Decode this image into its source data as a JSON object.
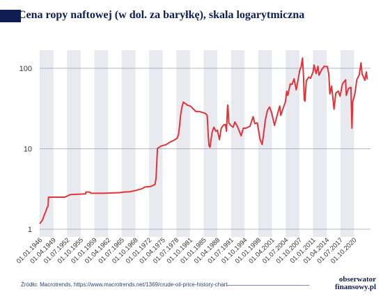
{
  "chart_data": {
    "type": "line",
    "title": "Cena ropy naftowej (w dol. za baryłkę), skala logarytmiczna",
    "xlabel": "",
    "ylabel": "",
    "yscale": "log",
    "ylim": [
      1,
      140
    ],
    "yticks": [
      {
        "value": 1,
        "label": "1"
      },
      {
        "value": 10,
        "label": "10"
      },
      {
        "value": 100,
        "label": "100"
      }
    ],
    "xlim": [
      "1946-01-01",
      "2023-12-31"
    ],
    "xtick_labels": [
      "01.01.1946",
      "01.04.1949",
      "01.07.1952",
      "01.10.1955",
      "01.01.1959",
      "01.04.1962",
      "01.07.1965",
      "01.10.1968",
      "01.01.1972",
      "01.04.1975",
      "01.07.1978",
      "01.10.1981",
      "01.01.1985",
      "01.04.1988",
      "01.07.1991",
      "01.10.1994",
      "01.01.1998",
      "01.04.2001",
      "01.07.2004",
      "01.10.2007",
      "01.01.2011",
      "01.04.2014",
      "01.07.2017",
      "01.10.2020"
    ],
    "grid": "alternating vertical bands",
    "band_color": "#e8eaf0",
    "line_color": "#e0343a",
    "series": [
      {
        "name": "",
        "points": [
          [
            "1946-01-01",
            1.17
          ],
          [
            "1946-09-01",
            1.3
          ],
          [
            "1947-02-01",
            1.5
          ],
          [
            "1947-06-01",
            1.65
          ],
          [
            "1947-10-01",
            1.85
          ],
          [
            "1948-01-01",
            1.95
          ],
          [
            "1948-02-01",
            2.5
          ],
          [
            "1949-06-01",
            2.5
          ],
          [
            "1952-01-01",
            2.5
          ],
          [
            "1952-03-01",
            2.53
          ],
          [
            "1953-05-01",
            2.7
          ],
          [
            "1956-12-01",
            2.75
          ],
          [
            "1957-01-01",
            2.9
          ],
          [
            "1957-12-01",
            2.9
          ],
          [
            "1958-03-01",
            2.8
          ],
          [
            "1961-01-01",
            2.8
          ],
          [
            "1965-01-01",
            2.85
          ],
          [
            "1966-01-01",
            2.9
          ],
          [
            "1967-06-01",
            2.92
          ],
          [
            "1969-01-01",
            3.05
          ],
          [
            "1970-06-01",
            3.2
          ],
          [
            "1971-01-01",
            3.35
          ],
          [
            "1972-06-01",
            3.4
          ],
          [
            "1973-06-01",
            3.6
          ],
          [
            "1973-09-01",
            4.3
          ],
          [
            "1974-01-01",
            10.1
          ],
          [
            "1975-01-01",
            10.9
          ],
          [
            "1976-01-01",
            11.2
          ],
          [
            "1977-01-01",
            12.1
          ],
          [
            "1978-01-01",
            12.8
          ],
          [
            "1978-09-01",
            13.5
          ],
          [
            "1979-01-01",
            15.0
          ],
          [
            "1979-04-01",
            19.0
          ],
          [
            "1979-07-01",
            26.0
          ],
          [
            "1979-11-01",
            33.0
          ],
          [
            "1980-03-01",
            38.0
          ],
          [
            "1980-06-01",
            37.0
          ],
          [
            "1980-11-01",
            36.0
          ],
          [
            "1981-01-01",
            35.0
          ],
          [
            "1981-06-01",
            34.5
          ],
          [
            "1982-01-01",
            33.5
          ],
          [
            "1982-06-01",
            31.5
          ],
          [
            "1983-03-01",
            29.0
          ],
          [
            "1984-01-01",
            29.0
          ],
          [
            "1985-06-01",
            27.5
          ],
          [
            "1985-11-01",
            26.0
          ],
          [
            "1986-02-01",
            15.0
          ],
          [
            "1986-04-01",
            11.0
          ],
          [
            "1986-07-01",
            10.4
          ],
          [
            "1986-10-01",
            13.0
          ],
          [
            "1987-01-01",
            16.0
          ],
          [
            "1987-06-01",
            18.5
          ],
          [
            "1987-12-01",
            16.5
          ],
          [
            "1988-04-01",
            17.0
          ],
          [
            "1988-10-01",
            13.0
          ],
          [
            "1989-03-01",
            18.0
          ],
          [
            "1989-10-01",
            19.8
          ],
          [
            "1990-03-01",
            20.0
          ],
          [
            "1990-06-01",
            16.5
          ],
          [
            "1990-09-01",
            33.0
          ],
          [
            "1990-10-01",
            35.0
          ],
          [
            "1991-01-01",
            21.0
          ],
          [
            "1991-06-01",
            19.5
          ],
          [
            "1992-01-01",
            18.5
          ],
          [
            "1992-06-01",
            21.5
          ],
          [
            "1993-01-01",
            19.0
          ],
          [
            "1993-12-01",
            14.5
          ],
          [
            "1994-06-01",
            18.0
          ],
          [
            "1995-01-01",
            18.0
          ],
          [
            "1996-01-01",
            19.0
          ],
          [
            "1996-10-01",
            25.0
          ],
          [
            "1997-03-01",
            20.5
          ],
          [
            "1997-10-01",
            21.0
          ],
          [
            "1998-06-01",
            13.0
          ],
          [
            "1998-12-01",
            11.3
          ],
          [
            "1999-03-01",
            14.0
          ],
          [
            "1999-09-01",
            23.0
          ],
          [
            "2000-03-01",
            30.0
          ],
          [
            "2000-09-01",
            33.0
          ],
          [
            "2001-03-01",
            28.0
          ],
          [
            "2001-11-01",
            19.5
          ],
          [
            "2002-06-01",
            25.5
          ],
          [
            "2003-02-01",
            34.0
          ],
          [
            "2003-05-01",
            26.0
          ],
          [
            "2003-12-01",
            32.0
          ],
          [
            "2004-06-01",
            38.0
          ],
          [
            "2004-10-01",
            52.0
          ],
          [
            "2005-01-01",
            46.0
          ],
          [
            "2005-08-01",
            64.0
          ],
          [
            "2006-01-01",
            63.0
          ],
          [
            "2006-07-01",
            74.0
          ],
          [
            "2007-01-01",
            54.0
          ],
          [
            "2007-07-01",
            75.0
          ],
          [
            "2007-11-01",
            94.0
          ],
          [
            "2008-03-01",
            105.0
          ],
          [
            "2008-07-01",
            134.0
          ],
          [
            "2008-10-01",
            77.0
          ],
          [
            "2008-12-01",
            41.0
          ],
          [
            "2009-02-01",
            39.0
          ],
          [
            "2009-06-01",
            70.0
          ],
          [
            "2010-01-01",
            78.0
          ],
          [
            "2010-06-01",
            75.0
          ],
          [
            "2011-01-01",
            90.0
          ],
          [
            "2011-04-01",
            110.0
          ],
          [
            "2011-10-01",
            86.0
          ],
          [
            "2012-03-01",
            106.0
          ],
          [
            "2012-06-01",
            82.0
          ],
          [
            "2013-01-01",
            95.0
          ],
          [
            "2013-09-01",
            106.0
          ],
          [
            "2014-06-01",
            105.0
          ],
          [
            "2014-10-01",
            84.0
          ],
          [
            "2015-01-01",
            48.0
          ],
          [
            "2015-06-01",
            60.0
          ],
          [
            "2016-01-01",
            31.0
          ],
          [
            "2016-06-01",
            49.0
          ],
          [
            "2017-01-01",
            52.0
          ],
          [
            "2017-06-01",
            45.0
          ],
          [
            "2018-01-01",
            64.0
          ],
          [
            "2018-10-01",
            72.0
          ],
          [
            "2018-12-01",
            46.0
          ],
          [
            "2019-06-01",
            56.0
          ],
          [
            "2020-01-01",
            58.0
          ],
          [
            "2020-04-01",
            18.0
          ],
          [
            "2020-06-01",
            38.0
          ],
          [
            "2020-12-01",
            47.0
          ],
          [
            "2021-06-01",
            72.0
          ],
          [
            "2022-01-01",
            83.0
          ],
          [
            "2022-06-01",
            117.0
          ],
          [
            "2022-09-01",
            85.0
          ],
          [
            "2023-01-01",
            78.0
          ],
          [
            "2023-05-01",
            71.0
          ],
          [
            "2023-09-01",
            90.0
          ],
          [
            "2023-12-01",
            73.0
          ]
        ]
      }
    ]
  },
  "footer": {
    "source": "Źródło: Macrotrends, https://www.macrotrends.net/1369/crude-oil-price-history-chart",
    "logo_line1": "obserwator",
    "logo_line2": "finansowy.pl"
  }
}
